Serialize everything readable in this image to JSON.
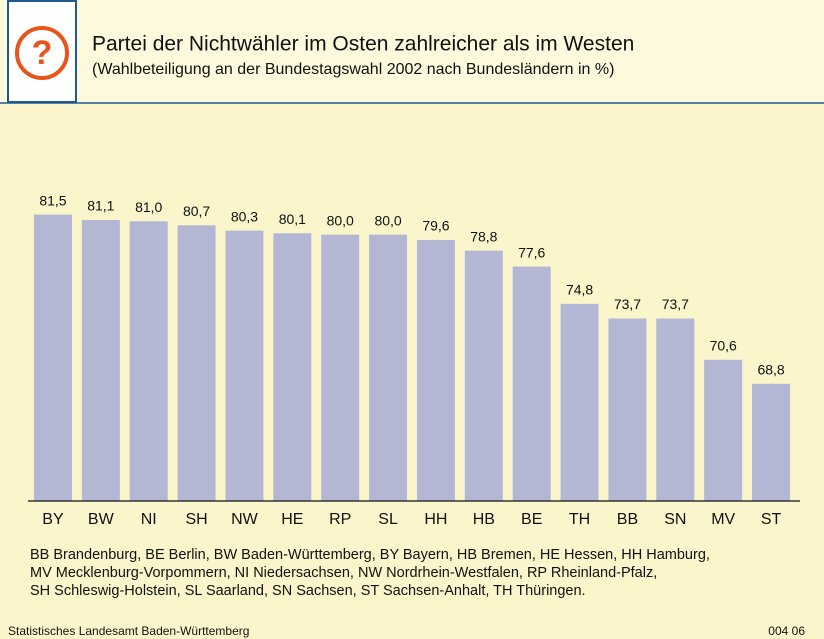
{
  "chart_data": {
    "type": "bar",
    "title": "Partei der Nichtwähler im Osten zahlreicher als im Westen",
    "subtitle": "(Wahlbeteiligung an der Bundestagswahl 2002 nach Bundesländern in %)",
    "categories": [
      "BY",
      "BW",
      "NI",
      "SH",
      "NW",
      "HE",
      "RP",
      "SL",
      "HH",
      "HB",
      "BE",
      "TH",
      "BB",
      "SN",
      "MV",
      "ST"
    ],
    "values": [
      81.5,
      81.1,
      81.0,
      80.7,
      80.3,
      80.1,
      80.0,
      80.0,
      79.6,
      78.8,
      77.6,
      74.8,
      73.7,
      73.7,
      70.6,
      68.8
    ],
    "value_labels": [
      "81,5",
      "81,1",
      "81,0",
      "80,7",
      "80,3",
      "80,1",
      "80,0",
      "80,0",
      "79,6",
      "78,8",
      "77,6",
      "74,8",
      "73,7",
      "73,7",
      "70,6",
      "68,8"
    ],
    "color": "#b3b7d4",
    "ylim": [
      60,
      85
    ],
    "notes": [
      "BB Brandenburg, BE Berlin, BW Baden-Württemberg, BY Bayern, HB Bremen, HE Hessen, HH Hamburg,",
      "MV Mecklenburg-Vorpommern, NI Niedersachsen, NW Nordrhein-Westfalen, RP Rheinland-Pfalz,",
      "SH Schleswig-Holstein, SL Saarland, SN Sachsen, ST Sachsen-Anhalt, TH Thüringen."
    ],
    "source": "Statistisches Landesamt Baden-Württemberg",
    "code": "004 06"
  }
}
